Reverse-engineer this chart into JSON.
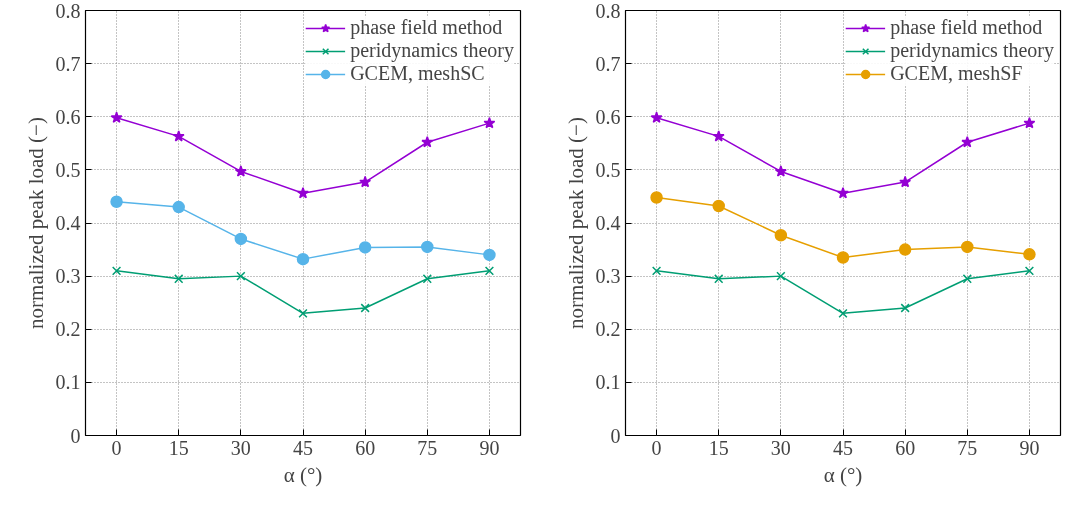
{
  "chart_data": [
    {
      "type": "line",
      "xlabel": "α (°)",
      "ylabel": "normalized peak load (−)",
      "x": [
        0,
        15,
        30,
        45,
        60,
        75,
        90
      ],
      "xlim": [
        -7.5,
        97.5
      ],
      "xticks": [
        0,
        15,
        30,
        45,
        60,
        75,
        90
      ],
      "ylim": [
        0,
        0.8
      ],
      "yticks": [
        0,
        0.1,
        0.2,
        0.3,
        0.4,
        0.5,
        0.6,
        0.7,
        0.8
      ],
      "grid": true,
      "legend": "top right",
      "series": [
        {
          "name": "phase field method",
          "color": "#9400d3",
          "marker": "star",
          "values": [
            0.598,
            0.563,
            0.497,
            0.456,
            0.477,
            0.552,
            0.588
          ]
        },
        {
          "name": "peridynamics theory",
          "color": "#009e73",
          "marker": "cross",
          "values": [
            0.31,
            0.295,
            0.3,
            0.23,
            0.24,
            0.295,
            0.31
          ]
        },
        {
          "name": "GCEM, meshSC",
          "color": "#56b4e9",
          "marker": "circle",
          "values": [
            0.44,
            0.43,
            0.37,
            0.332,
            0.354,
            0.355,
            0.34
          ]
        }
      ]
    },
    {
      "type": "line",
      "xlabel": "α (°)",
      "ylabel": "normalized peak load (−)",
      "x": [
        0,
        15,
        30,
        45,
        60,
        75,
        90
      ],
      "xlim": [
        -7.5,
        97.5
      ],
      "xticks": [
        0,
        15,
        30,
        45,
        60,
        75,
        90
      ],
      "ylim": [
        0,
        0.8
      ],
      "yticks": [
        0,
        0.1,
        0.2,
        0.3,
        0.4,
        0.5,
        0.6,
        0.7,
        0.8
      ],
      "grid": true,
      "legend": "top right",
      "series": [
        {
          "name": "phase field method",
          "color": "#9400d3",
          "marker": "star",
          "values": [
            0.598,
            0.563,
            0.497,
            0.456,
            0.477,
            0.552,
            0.588
          ]
        },
        {
          "name": "peridynamics theory",
          "color": "#009e73",
          "marker": "cross",
          "values": [
            0.31,
            0.295,
            0.3,
            0.23,
            0.24,
            0.295,
            0.31
          ]
        },
        {
          "name": "GCEM, meshSF",
          "color": "#e69f00",
          "marker": "circle",
          "values": [
            0.448,
            0.432,
            0.377,
            0.335,
            0.35,
            0.355,
            0.341
          ]
        }
      ]
    }
  ]
}
